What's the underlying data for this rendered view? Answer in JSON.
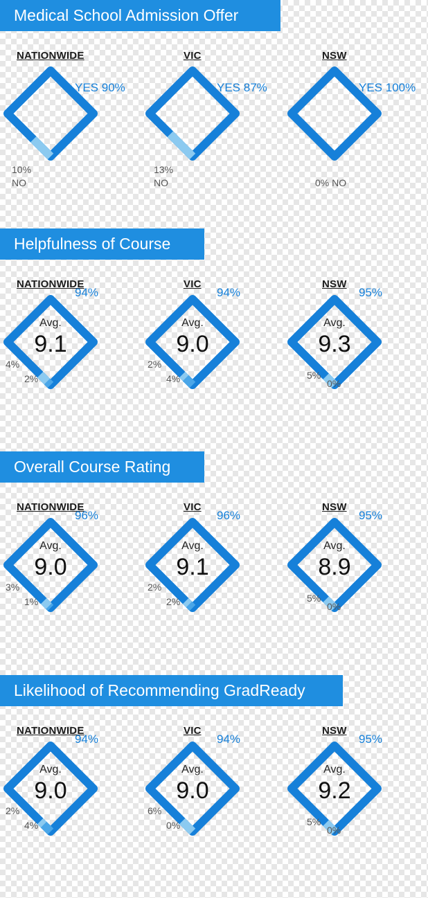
{
  "colors": {
    "banner": "#1f8ee0",
    "yes": "#1680d9",
    "middle": "#4aa6e8",
    "no": "#8ccaf0",
    "text_blue": "#1680d9"
  },
  "chart_data": [
    {
      "type": "gauge",
      "title": "Medical School Admission Offer",
      "regions": [
        {
          "name": "NATIONWIDE",
          "yes": 90,
          "no": 10,
          "yes_label": "YES 90%",
          "no_pct": "10%",
          "no_word": "NO"
        },
        {
          "name": "VIC",
          "yes": 87,
          "no": 13,
          "yes_label": "YES 87%",
          "no_pct": "13%",
          "no_word": "NO"
        },
        {
          "name": "NSW",
          "yes": 100,
          "no": 0,
          "yes_label": "YES 100%",
          "no_pct": "0% NO",
          "no_word": ""
        }
      ]
    },
    {
      "type": "gauge",
      "title": "Helpfulness of Course",
      "avg_label": "Avg.",
      "regions": [
        {
          "name": "NATIONWIDE",
          "avg": "9.1",
          "top": 94,
          "mid": 4,
          "low": 2,
          "top_label": "94%",
          "mid_label": "4%",
          "low_label": "2%"
        },
        {
          "name": "VIC",
          "avg": "9.0",
          "top": 94,
          "mid": 2,
          "low": 4,
          "top_label": "94%",
          "mid_label": "2%",
          "low_label": "4%"
        },
        {
          "name": "NSW",
          "avg": "9.3",
          "top": 95,
          "mid": 5,
          "low": 0,
          "top_label": "95%",
          "mid_label": "5%",
          "low_label": "0%"
        }
      ]
    },
    {
      "type": "gauge",
      "title": "Overall Course Rating",
      "avg_label": "Avg.",
      "regions": [
        {
          "name": "NATIONWIDE",
          "avg": "9.0",
          "top": 96,
          "mid": 3,
          "low": 1,
          "top_label": "96%",
          "mid_label": "3%",
          "low_label": "1%"
        },
        {
          "name": "VIC",
          "avg": "9.1",
          "top": 96,
          "mid": 2,
          "low": 2,
          "top_label": "96%",
          "mid_label": "2%",
          "low_label": "2%"
        },
        {
          "name": "NSW",
          "avg": "8.9",
          "top": 95,
          "mid": 5,
          "low": 0,
          "top_label": "95%",
          "mid_label": "5%",
          "low_label": "0%"
        }
      ]
    },
    {
      "type": "gauge",
      "title": "Likelihood of Recommending GradReady",
      "avg_label": "Avg.",
      "regions": [
        {
          "name": "NATIONWIDE",
          "avg": "9.0",
          "top": 94,
          "mid": 2,
          "low": 4,
          "top_label": "94%",
          "mid_label": "2%",
          "low_label": "4%"
        },
        {
          "name": "VIC",
          "avg": "9.0",
          "top": 94,
          "mid": 6,
          "low": 0,
          "top_label": "94%",
          "mid_label": "6%",
          "low_label": "0%"
        },
        {
          "name": "NSW",
          "avg": "9.2",
          "top": 95,
          "mid": 5,
          "low": 0,
          "top_label": "95%",
          "mid_label": "5%",
          "low_label": "0%"
        }
      ]
    }
  ]
}
